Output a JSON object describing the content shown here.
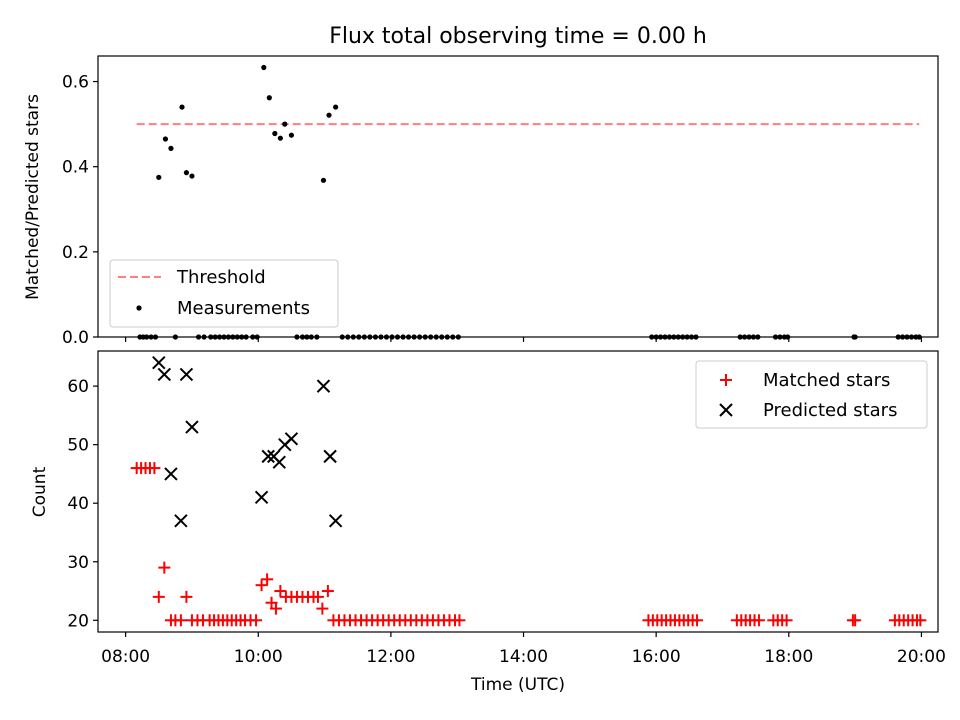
{
  "title": "Flux total observing time = 0.00 h",
  "colors": {
    "threshold": "#ff7f7f",
    "measurement": "#000000",
    "matched": "#ff0000",
    "predicted": "#000000"
  },
  "chart_data": [
    {
      "type": "scatter",
      "ylabel": "Matched/Predicted stars",
      "xlim": [
        "07:35",
        "20:15"
      ],
      "ylim": [
        0,
        0.66
      ],
      "yticks": [
        "0.0",
        "0.2",
        "0.4",
        "0.6"
      ],
      "legend": {
        "placement": "lower-left",
        "entries": [
          "Threshold",
          "Measurements"
        ]
      },
      "threshold": {
        "name": "Threshold",
        "value": 0.5,
        "x_start": "08:10",
        "x_end": "19:58"
      },
      "measurements": {
        "name": "Measurements",
        "points": [
          [
            "08:13",
            0
          ],
          [
            "08:16",
            0
          ],
          [
            "08:19",
            0
          ],
          [
            "08:23",
            0
          ],
          [
            "08:27",
            0
          ],
          [
            "08:30",
            0.375
          ],
          [
            "08:36",
            0.465
          ],
          [
            "08:41",
            0.443
          ],
          [
            "08:45",
            0
          ],
          [
            "08:51",
            0.54
          ],
          [
            "08:55",
            0.386
          ],
          [
            "09:00",
            0.378
          ],
          [
            "09:06",
            0
          ],
          [
            "09:11",
            0
          ],
          [
            "09:17",
            0
          ],
          [
            "09:21",
            0
          ],
          [
            "09:25",
            0
          ],
          [
            "09:29",
            0
          ],
          [
            "09:33",
            0
          ],
          [
            "09:37",
            0
          ],
          [
            "09:41",
            0
          ],
          [
            "09:45",
            0
          ],
          [
            "09:49",
            0
          ],
          [
            "09:55",
            0
          ],
          [
            "09:59",
            0
          ],
          [
            "10:05",
            0.633
          ],
          [
            "10:10",
            0.562
          ],
          [
            "10:15",
            0.478
          ],
          [
            "10:20",
            0.467
          ],
          [
            "10:24",
            0.5
          ],
          [
            "10:30",
            0.474
          ],
          [
            "10:35",
            0
          ],
          [
            "10:40",
            0
          ],
          [
            "10:44",
            0
          ],
          [
            "10:48",
            0
          ],
          [
            "10:53",
            0
          ],
          [
            "10:59",
            0.368
          ],
          [
            "11:04",
            0.521
          ],
          [
            "11:10",
            0.54
          ],
          [
            "11:16",
            0
          ],
          [
            "11:21",
            0
          ],
          [
            "11:26",
            0
          ],
          [
            "11:31",
            0
          ],
          [
            "11:36",
            0
          ],
          [
            "11:41",
            0
          ],
          [
            "11:46",
            0
          ],
          [
            "11:51",
            0
          ],
          [
            "11:56",
            0
          ],
          [
            "12:01",
            0
          ],
          [
            "12:06",
            0
          ],
          [
            "12:11",
            0
          ],
          [
            "12:16",
            0
          ],
          [
            "12:21",
            0
          ],
          [
            "12:26",
            0
          ],
          [
            "12:31",
            0
          ],
          [
            "12:36",
            0
          ],
          [
            "12:41",
            0
          ],
          [
            "12:46",
            0
          ],
          [
            "12:51",
            0
          ],
          [
            "12:56",
            0
          ],
          [
            "13:01",
            0
          ],
          [
            "15:56",
            0
          ],
          [
            "16:00",
            0
          ],
          [
            "16:04",
            0
          ],
          [
            "16:08",
            0
          ],
          [
            "16:12",
            0
          ],
          [
            "16:16",
            0
          ],
          [
            "16:20",
            0
          ],
          [
            "16:24",
            0
          ],
          [
            "16:28",
            0
          ],
          [
            "16:32",
            0
          ],
          [
            "16:36",
            0
          ],
          [
            "17:16",
            0
          ],
          [
            "17:20",
            0
          ],
          [
            "17:24",
            0
          ],
          [
            "17:28",
            0
          ],
          [
            "17:32",
            0
          ],
          [
            "17:48",
            0
          ],
          [
            "17:52",
            0
          ],
          [
            "17:56",
            0
          ],
          [
            "17:59",
            0
          ],
          [
            "18:59",
            0
          ],
          [
            "19:00",
            0
          ],
          [
            "19:39",
            0
          ],
          [
            "19:43",
            0
          ],
          [
            "19:47",
            0
          ],
          [
            "19:51",
            0
          ],
          [
            "19:55",
            0
          ],
          [
            "19:58",
            0
          ]
        ]
      }
    },
    {
      "type": "scatter",
      "xlabel": "Time (UTC)",
      "ylabel": "Count",
      "xlim": [
        "07:35",
        "20:15"
      ],
      "ylim": [
        18,
        66
      ],
      "xticks": [
        "08:00",
        "10:00",
        "12:00",
        "14:00",
        "16:00",
        "18:00",
        "20:00"
      ],
      "yticks": [
        "20",
        "30",
        "40",
        "50",
        "60"
      ],
      "legend": {
        "placement": "top-right",
        "entries": [
          "Matched stars",
          "Predicted stars"
        ]
      },
      "series": [
        {
          "name": "Matched stars",
          "marker": "+",
          "points": [
            [
              "08:10",
              46
            ],
            [
              "08:14",
              46
            ],
            [
              "08:18",
              46
            ],
            [
              "08:22",
              46
            ],
            [
              "08:26",
              46
            ],
            [
              "08:30",
              24
            ],
            [
              "08:35",
              29
            ],
            [
              "08:41",
              20
            ],
            [
              "08:45",
              20
            ],
            [
              "08:50",
              20
            ],
            [
              "08:55",
              24
            ],
            [
              "09:00",
              20
            ],
            [
              "09:05",
              20
            ],
            [
              "09:10",
              20
            ],
            [
              "09:16",
              20
            ],
            [
              "09:20",
              20
            ],
            [
              "09:24",
              20
            ],
            [
              "09:28",
              20
            ],
            [
              "09:32",
              20
            ],
            [
              "09:36",
              20
            ],
            [
              "09:40",
              20
            ],
            [
              "09:44",
              20
            ],
            [
              "09:48",
              20
            ],
            [
              "09:53",
              20
            ],
            [
              "09:58",
              20
            ],
            [
              "10:03",
              26
            ],
            [
              "10:08",
              27
            ],
            [
              "10:12",
              23
            ],
            [
              "10:16",
              22
            ],
            [
              "10:20",
              25
            ],
            [
              "10:25",
              24
            ],
            [
              "10:30",
              24
            ],
            [
              "10:35",
              24
            ],
            [
              "10:40",
              24
            ],
            [
              "10:45",
              24
            ],
            [
              "10:50",
              24
            ],
            [
              "10:54",
              24
            ],
            [
              "10:58",
              22
            ],
            [
              "11:03",
              25
            ],
            [
              "11:08",
              20
            ],
            [
              "11:13",
              20
            ],
            [
              "11:18",
              20
            ],
            [
              "11:23",
              20
            ],
            [
              "11:28",
              20
            ],
            [
              "11:33",
              20
            ],
            [
              "11:38",
              20
            ],
            [
              "11:43",
              20
            ],
            [
              "11:48",
              20
            ],
            [
              "11:53",
              20
            ],
            [
              "11:58",
              20
            ],
            [
              "12:03",
              20
            ],
            [
              "12:08",
              20
            ],
            [
              "12:13",
              20
            ],
            [
              "12:18",
              20
            ],
            [
              "12:23",
              20
            ],
            [
              "12:28",
              20
            ],
            [
              "12:33",
              20
            ],
            [
              "12:38",
              20
            ],
            [
              "12:43",
              20
            ],
            [
              "12:48",
              20
            ],
            [
              "12:53",
              20
            ],
            [
              "12:58",
              20
            ],
            [
              "13:02",
              20
            ],
            [
              "15:53",
              20
            ],
            [
              "15:57",
              20
            ],
            [
              "16:01",
              20
            ],
            [
              "16:05",
              20
            ],
            [
              "16:09",
              20
            ],
            [
              "16:13",
              20
            ],
            [
              "16:17",
              20
            ],
            [
              "16:21",
              20
            ],
            [
              "16:25",
              20
            ],
            [
              "16:29",
              20
            ],
            [
              "16:33",
              20
            ],
            [
              "16:37",
              20
            ],
            [
              "17:13",
              20
            ],
            [
              "17:17",
              20
            ],
            [
              "17:21",
              20
            ],
            [
              "17:25",
              20
            ],
            [
              "17:29",
              20
            ],
            [
              "17:33",
              20
            ],
            [
              "17:46",
              20
            ],
            [
              "17:50",
              20
            ],
            [
              "17:54",
              20
            ],
            [
              "17:58",
              20
            ],
            [
              "18:58",
              20
            ],
            [
              "19:00",
              20
            ],
            [
              "19:36",
              20
            ],
            [
              "19:40",
              20
            ],
            [
              "19:44",
              20
            ],
            [
              "19:48",
              20
            ],
            [
              "19:52",
              20
            ],
            [
              "19:56",
              20
            ],
            [
              "19:59",
              20
            ]
          ]
        },
        {
          "name": "Predicted stars",
          "marker": "x",
          "points": [
            [
              "08:30",
              64
            ],
            [
              "08:35",
              62
            ],
            [
              "08:41",
              45
            ],
            [
              "08:50",
              37
            ],
            [
              "08:55",
              62
            ],
            [
              "09:00",
              53
            ],
            [
              "10:03",
              41
            ],
            [
              "10:09",
              48
            ],
            [
              "10:14",
              48
            ],
            [
              "10:19",
              47
            ],
            [
              "10:24",
              50
            ],
            [
              "10:30",
              51
            ],
            [
              "10:59",
              60
            ],
            [
              "11:05",
              48
            ],
            [
              "11:10",
              37
            ]
          ]
        }
      ]
    }
  ]
}
